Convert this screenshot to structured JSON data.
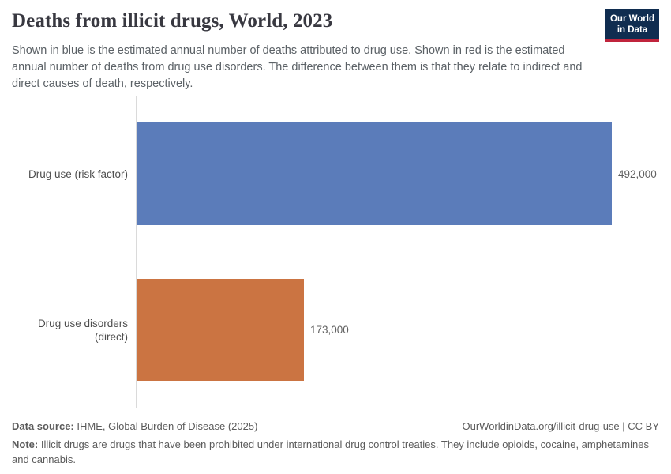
{
  "header": {
    "title": "Deaths from illicit drugs, World, 2023",
    "subtitle": "Shown in blue is the estimated annual number of deaths attributed to drug use. Shown in red is the estimated annual number of deaths from drug use disorders. The difference between them is that they relate to indirect and direct causes of death, respectively.",
    "logo": {
      "line1": "Our World",
      "line2": "in Data"
    }
  },
  "chart_data": {
    "type": "bar",
    "orientation": "horizontal",
    "title": "Deaths from illicit drugs, World, 2023",
    "categories": [
      "Drug use (risk factor)",
      "Drug use disorders (direct)"
    ],
    "values": [
      492000,
      173000
    ],
    "value_labels": [
      "492,000",
      "173,000"
    ],
    "colors": [
      "#5b7cba",
      "#cb7442"
    ],
    "xlim": [
      0,
      492000
    ],
    "grid": false,
    "legend": false,
    "axis_line_color": "#dadada"
  },
  "footer": {
    "data_source_label": "Data source:",
    "data_source": " IHME, Global Burden of Disease (2025)",
    "citation": "OurWorldinData.org/illicit-drug-use | CC BY",
    "note_label": "Note:",
    "note": " Illicit drugs are drugs that have been prohibited under international drug control treaties. They include opioids, cocaine, amphetamines and cannabis."
  },
  "colors": {
    "bar_blue": "#5b7cba",
    "bar_orange": "#cb7442",
    "logo_navy": "#102d50",
    "logo_red": "#c0243c",
    "title_text": "#383840",
    "body_text": "#5b6166"
  }
}
